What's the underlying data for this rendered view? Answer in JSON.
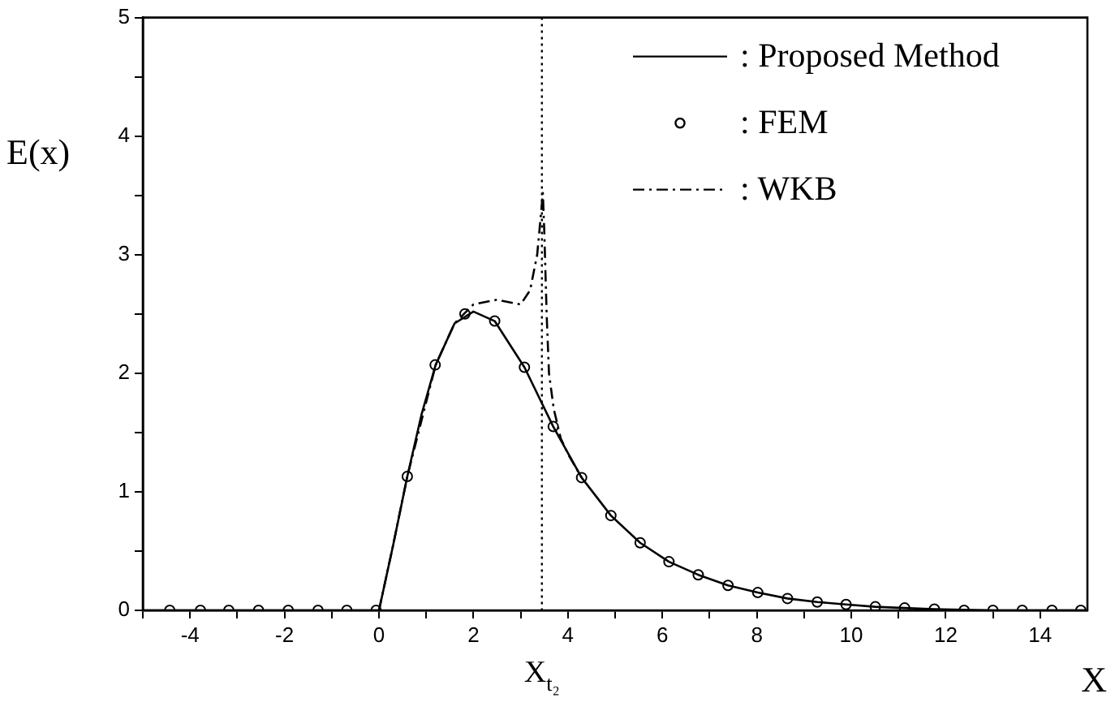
{
  "chart_data": {
    "type": "line",
    "xlabel": "X",
    "ylabel": "E(x)",
    "xlim": [
      -5,
      15
    ],
    "ylim": [
      0,
      5
    ],
    "xticks": [
      {
        "value": -5,
        "label": null
      },
      -4,
      {
        "value": -3,
        "label": null
      },
      -2,
      {
        "value": -1,
        "label": null
      },
      0,
      {
        "value": 1,
        "label": null
      },
      2,
      {
        "value": 3,
        "label": null
      },
      4,
      {
        "value": 5,
        "label": null
      },
      6,
      {
        "value": 7,
        "label": null
      },
      8,
      {
        "value": 9,
        "label": null
      },
      10,
      {
        "value": 11,
        "label": null
      },
      12,
      {
        "value": 13,
        "label": null
      },
      14
    ],
    "yticks": [
      0,
      {
        "value": 0.5,
        "label": null
      },
      1,
      {
        "value": 1.5,
        "label": null
      },
      2,
      {
        "value": 2.5,
        "label": null
      },
      3,
      {
        "value": 3.5,
        "label": null
      },
      4,
      {
        "value": 4.5,
        "label": null
      },
      5
    ],
    "grid": false,
    "legend": "top right",
    "series": [
      {
        "name": ": Proposed Method",
        "type": "line",
        "color": "#000000",
        "marker": "none",
        "line_style": "solid",
        "x": [
          -5,
          0,
          0.3,
          0.6,
          0.9,
          1.2,
          1.6,
          2.0,
          2.45,
          3.08,
          3.69,
          4.29,
          4.91,
          5.53,
          6.14,
          6.76,
          7.39,
          8.02,
          8.65,
          9.28,
          9.89,
          10.51,
          11.13,
          11.76,
          13,
          15
        ],
        "values": [
          0,
          0,
          0.55,
          1.13,
          1.65,
          2.07,
          2.42,
          2.52,
          2.44,
          2.05,
          1.55,
          1.12,
          0.8,
          0.57,
          0.41,
          0.3,
          0.21,
          0.15,
          0.1,
          0.07,
          0.05,
          0.03,
          0.02,
          0.01,
          0,
          0
        ]
      },
      {
        "name": ": FEM",
        "type": "scatter",
        "color": "#000000",
        "marker": "circle",
        "x": [
          -4.43,
          -3.78,
          -3.18,
          -2.55,
          -1.92,
          -1.29,
          -0.68,
          -0.06,
          0.6,
          1.19,
          1.82,
          2.45,
          3.08,
          3.69,
          4.29,
          4.91,
          5.53,
          6.14,
          6.76,
          7.39,
          8.02,
          8.65,
          9.28,
          9.89,
          10.51,
          11.13,
          11.76,
          12.39,
          13.0,
          13.62,
          14.25,
          14.86
        ],
        "values": [
          0,
          0,
          0,
          0,
          0,
          0,
          0,
          0,
          1.13,
          2.07,
          2.5,
          2.44,
          2.05,
          1.55,
          1.12,
          0.8,
          0.57,
          0.41,
          0.3,
          0.21,
          0.15,
          0.1,
          0.07,
          0.05,
          0.03,
          0.02,
          0.01,
          0,
          0,
          0,
          0,
          0
        ]
      },
      {
        "name": ": WKB",
        "type": "line",
        "color": "#000000",
        "marker": "none",
        "line_style": "dashdot",
        "x": [
          0,
          0.3,
          0.6,
          1.2,
          1.6,
          2.0,
          2.5,
          3.0,
          3.2,
          3.35,
          3.42,
          3.47,
          3.5,
          3.55,
          3.6,
          3.7,
          3.85,
          4.0,
          4.29
        ],
        "values": [
          0,
          0.55,
          1.13,
          2.07,
          2.42,
          2.58,
          2.62,
          2.58,
          2.7,
          3.0,
          3.3,
          3.52,
          3.2,
          2.5,
          2.0,
          1.7,
          1.45,
          1.32,
          1.12
        ]
      }
    ],
    "ref_lines": [
      {
        "axis": "x",
        "value": 3.45,
        "label": "X$_{t₂}$",
        "line_style": "dotted",
        "color": "#000000"
      }
    ]
  }
}
